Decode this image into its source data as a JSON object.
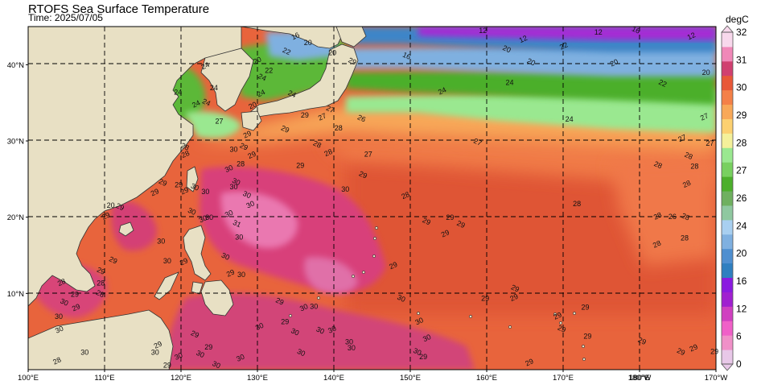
{
  "header": {
    "title": "RTOFS Sea Surface Temperature",
    "subtitle": "Time: 2025/07/05",
    "units": "degC"
  },
  "map": {
    "region": "Western North Pacific",
    "lon_range": [
      100,
      170
    ],
    "lat_range": [
      0,
      45
    ],
    "lon_ticks": [
      {
        "lon": 100,
        "label": "100°E"
      },
      {
        "lon": 110,
        "label": "110°E"
      },
      {
        "lon": 120,
        "label": "120°E"
      },
      {
        "lon": 130,
        "label": "130°E"
      },
      {
        "lon": 140,
        "label": "140°E"
      },
      {
        "lon": 150,
        "label": "150°E"
      },
      {
        "lon": 160,
        "label": "160°E"
      },
      {
        "lon": 170,
        "label": "170°E"
      },
      {
        "lon": 180,
        "label": "180°W"
      },
      {
        "lon": 180,
        "label": "180°E"
      },
      {
        "lon": 190,
        "label": "170°W"
      }
    ],
    "lat_ticks": [
      {
        "lat": 10,
        "label": "10°N"
      },
      {
        "lat": 20,
        "label": "20°N"
      },
      {
        "lat": 30,
        "label": "30°N"
      },
      {
        "lat": 40,
        "label": "40°N"
      }
    ],
    "grid_lines": "dashed",
    "land_color": "#e8e0c4"
  },
  "colorbar": {
    "levels": [
      0,
      2,
      4,
      6,
      8,
      10,
      12,
      14,
      16,
      18,
      20,
      21,
      22,
      23,
      24,
      25,
      26,
      27,
      28,
      29,
      30,
      31,
      32
    ],
    "colors": [
      "#e8c8e8",
      "#f090c8",
      "#f060c8",
      "#d040c0",
      "#a020d0",
      "#8a1ae0",
      "#2f7fc0",
      "#4f8fd0",
      "#7fb0e0",
      "#a8cff0",
      "#8fc8a0",
      "#6fb060",
      "#4caf2c",
      "#78d060",
      "#9ae890",
      "#f4f09a",
      "#fcd070",
      "#f8a858",
      "#f48048",
      "#e85838",
      "#d04070",
      "#f088b8",
      "#f8d8ec"
    ],
    "tick_labels": [
      "0",
      "6",
      "12",
      "16",
      "20",
      "24",
      "26",
      "27",
      "28",
      "29",
      "30",
      "31",
      "32"
    ]
  },
  "contour_labels": [
    {
      "t": "16",
      "lon": 135,
      "lat": 43.7
    },
    {
      "t": "20",
      "lon": 136.6,
      "lat": 42.8
    },
    {
      "t": "22",
      "lon": 133.8,
      "lat": 41.7
    },
    {
      "t": "20",
      "lon": 130,
      "lat": 40.5
    },
    {
      "t": "20",
      "lon": 139.8,
      "lat": 41.5
    },
    {
      "t": "29",
      "lon": 142.4,
      "lat": 40.4
    },
    {
      "t": "24",
      "lon": 123.2,
      "lat": 39.8
    },
    {
      "t": "24",
      "lon": 124.3,
      "lat": 36.9
    },
    {
      "t": "24",
      "lon": 123.3,
      "lat": 35
    },
    {
      "t": "24",
      "lon": 122,
      "lat": 34.8
    },
    {
      "t": "24",
      "lon": 119.6,
      "lat": 36.3
    },
    {
      "t": "24",
      "lon": 130.6,
      "lat": 38.3
    },
    {
      "t": "24",
      "lon": 130.5,
      "lat": 36.2
    },
    {
      "t": "22",
      "lon": 131.5,
      "lat": 39.2
    },
    {
      "t": "24",
      "lon": 134.5,
      "lat": 36.1
    },
    {
      "t": "20",
      "lon": 129.4,
      "lat": 34.6
    },
    {
      "t": "27",
      "lon": 125,
      "lat": 32.5
    },
    {
      "t": "29",
      "lon": 133.6,
      "lat": 31.5
    },
    {
      "t": "29",
      "lon": 128.7,
      "lat": 30.8
    },
    {
      "t": "29",
      "lon": 136.2,
      "lat": 33.3
    },
    {
      "t": "27",
      "lon": 139.5,
      "lat": 34.1
    },
    {
      "t": "27",
      "lon": 138.5,
      "lat": 33.1
    },
    {
      "t": "28",
      "lon": 140.6,
      "lat": 31.6
    },
    {
      "t": "26",
      "lon": 143.6,
      "lat": 32.9
    },
    {
      "t": "24",
      "lon": 154.2,
      "lat": 36.5
    },
    {
      "t": "24",
      "lon": 163,
      "lat": 37.6
    },
    {
      "t": "22",
      "lon": 183,
      "lat": 37.5
    },
    {
      "t": "27",
      "lon": 188.5,
      "lat": 33.1
    },
    {
      "t": "24",
      "lon": 170.8,
      "lat": 32.8
    },
    {
      "t": "27",
      "lon": 158.8,
      "lat": 29.8
    },
    {
      "t": "27",
      "lon": 185.6,
      "lat": 30.3
    },
    {
      "t": "27",
      "lon": 189.2,
      "lat": 29.6
    },
    {
      "t": "20",
      "lon": 165.8,
      "lat": 40.3
    },
    {
      "t": "20",
      "lon": 176.7,
      "lat": 40.2
    },
    {
      "t": "20",
      "lon": 188.7,
      "lat": 38.9
    },
    {
      "t": "16",
      "lon": 149.5,
      "lat": 41.1
    },
    {
      "t": "12",
      "lon": 164.8,
      "lat": 43.3
    },
    {
      "t": "12",
      "lon": 174.6,
      "lat": 44.2
    },
    {
      "t": "16",
      "lon": 179.5,
      "lat": 44.5
    },
    {
      "t": "12",
      "lon": 186.8,
      "lat": 43.7
    },
    {
      "t": "12",
      "lon": 159.5,
      "lat": 44.4
    },
    {
      "t": "20",
      "lon": 162.6,
      "lat": 42
    },
    {
      "t": "22",
      "lon": 170.1,
      "lat": 42.4
    },
    {
      "t": "27",
      "lon": 144.5,
      "lat": 28.2
    },
    {
      "t": "28",
      "lon": 137.8,
      "lat": 29.5
    },
    {
      "t": "28",
      "lon": 139.3,
      "lat": 28.4
    },
    {
      "t": "30",
      "lon": 126.9,
      "lat": 28.8
    },
    {
      "t": "29",
      "lon": 128.2,
      "lat": 29.2
    },
    {
      "t": "29",
      "lon": 129.3,
      "lat": 28.1
    },
    {
      "t": "29",
      "lon": 135.6,
      "lat": 26.7
    },
    {
      "t": "29",
      "lon": 143.8,
      "lat": 25.5
    },
    {
      "t": "28",
      "lon": 149.4,
      "lat": 22.8
    },
    {
      "t": "28",
      "lon": 171.8,
      "lat": 21.7
    },
    {
      "t": "28",
      "lon": 182.4,
      "lat": 26.8
    },
    {
      "t": "28",
      "lon": 186.2,
      "lat": 24.3
    },
    {
      "t": "28",
      "lon": 187.2,
      "lat": 26.6
    },
    {
      "t": "28",
      "lon": 186.4,
      "lat": 28
    },
    {
      "t": "28",
      "lon": 182.4,
      "lat": 20.1
    },
    {
      "t": "26",
      "lon": 184.3,
      "lat": 20
    },
    {
      "t": "28",
      "lon": 186,
      "lat": 20
    },
    {
      "t": "28",
      "lon": 182.3,
      "lat": 16.4
    },
    {
      "t": "28",
      "lon": 185.9,
      "lat": 17.2
    },
    {
      "t": "29",
      "lon": 152.1,
      "lat": 19.4
    },
    {
      "t": "29",
      "lon": 154.6,
      "lat": 17.8
    },
    {
      "t": "29",
      "lon": 155.2,
      "lat": 19.9
    },
    {
      "t": "29",
      "lon": 156.6,
      "lat": 19
    },
    {
      "t": "29",
      "lon": 147.8,
      "lat": 13.6
    },
    {
      "t": "30",
      "lon": 141.5,
      "lat": 23.6
    },
    {
      "t": "30",
      "lon": 128.6,
      "lat": 22.9
    },
    {
      "t": "30",
      "lon": 126.3,
      "lat": 26.3
    },
    {
      "t": "30",
      "lon": 126.9,
      "lat": 23.9
    },
    {
      "t": "30",
      "lon": 127.2,
      "lat": 24.6
    },
    {
      "t": "30",
      "lon": 129.1,
      "lat": 21.6
    },
    {
      "t": "30",
      "lon": 127.6,
      "lat": 17.3
    },
    {
      "t": "31",
      "lon": 127.3,
      "lat": 19.1
    },
    {
      "t": "30",
      "lon": 126.3,
      "lat": 20.4
    },
    {
      "t": "30",
      "lon": 123.7,
      "lat": 19.9
    },
    {
      "t": "30",
      "lon": 121.4,
      "lat": 20.7
    },
    {
      "t": "30",
      "lon": 122.9,
      "lat": 19.7
    },
    {
      "t": "30",
      "lon": 123.2,
      "lat": 23.3
    },
    {
      "t": "30",
      "lon": 121.8,
      "lat": 23.9
    },
    {
      "t": "29",
      "lon": 120.5,
      "lat": 23.4
    },
    {
      "t": "29",
      "lon": 119.7,
      "lat": 24.2
    },
    {
      "t": "28",
      "lon": 120.5,
      "lat": 29.2
    },
    {
      "t": "28",
      "lon": 120.6,
      "lat": 28.2
    },
    {
      "t": "28",
      "lon": 127.8,
      "lat": 26.9
    },
    {
      "t": "29",
      "lon": 117.6,
      "lat": 24.5
    },
    {
      "t": "29",
      "lon": 116.6,
      "lat": 23.2
    },
    {
      "t": "20",
      "lon": 110.8,
      "lat": 21.5
    },
    {
      "t": "29",
      "lon": 112,
      "lat": 21.3
    },
    {
      "t": "29",
      "lon": 110.2,
      "lat": 20.1
    },
    {
      "t": "30",
      "lon": 117.4,
      "lat": 16.8
    },
    {
      "t": "29",
      "lon": 111.1,
      "lat": 14.3
    },
    {
      "t": "28",
      "lon": 104.4,
      "lat": 11.4
    },
    {
      "t": "28",
      "lon": 109.5,
      "lat": 11.3
    },
    {
      "t": "29",
      "lon": 109.5,
      "lat": 12.9
    },
    {
      "t": "29",
      "lon": 120.4,
      "lat": 14.1
    },
    {
      "t": "30",
      "lon": 118.2,
      "lat": 14.2
    },
    {
      "t": "30",
      "lon": 125.8,
      "lat": 14.8
    },
    {
      "t": "29",
      "lon": 126.5,
      "lat": 12.6
    },
    {
      "t": "30",
      "lon": 127.9,
      "lat": 12.4
    },
    {
      "t": "29",
      "lon": 132.9,
      "lat": 8.9
    },
    {
      "t": "30",
      "lon": 136.1,
      "lat": 8.1
    },
    {
      "t": "30",
      "lon": 137.4,
      "lat": 8.2
    },
    {
      "t": "30",
      "lon": 148.8,
      "lat": 9.3
    },
    {
      "t": "30",
      "lon": 139.8,
      "lat": 5.2
    },
    {
      "t": "30",
      "lon": 142,
      "lat": 3.6
    },
    {
      "t": "30",
      "lon": 138.2,
      "lat": 5.1
    },
    {
      "t": "30",
      "lon": 151.2,
      "lat": 6.3
    },
    {
      "t": "29",
      "lon": 159.8,
      "lat": 9.3
    },
    {
      "t": "29",
      "lon": 169.8,
      "lat": 5.3
    },
    {
      "t": "29",
      "lon": 169.3,
      "lat": 7
    },
    {
      "t": "29",
      "lon": 172.9,
      "lat": 8.1
    },
    {
      "t": "29",
      "lon": 163.7,
      "lat": 10.6
    },
    {
      "t": "29",
      "lon": 163.6,
      "lat": 9.4
    },
    {
      "t": "29",
      "lon": 173.2,
      "lat": 4.3
    },
    {
      "t": "29",
      "lon": 180.3,
      "lat": 3.7
    },
    {
      "t": "29",
      "lon": 187.1,
      "lat": 2.8
    },
    {
      "t": "29",
      "lon": 189.8,
      "lat": 2.3
    },
    {
      "t": "29",
      "lon": 185.4,
      "lat": 2.3
    },
    {
      "t": "29",
      "lon": 165.6,
      "lat": 0.9
    },
    {
      "t": "29",
      "lon": 151.7,
      "lat": 1.6
    },
    {
      "t": "30",
      "lon": 150.9,
      "lat": 2.3
    },
    {
      "t": "30",
      "lon": 152.2,
      "lat": 4.1
    },
    {
      "t": "30",
      "lon": 142.3,
      "lat": 2.8
    },
    {
      "t": "30",
      "lon": 134.9,
      "lat": 4.9
    },
    {
      "t": "30",
      "lon": 130.3,
      "lat": 5.6
    },
    {
      "t": "29",
      "lon": 133.6,
      "lat": 6.2
    },
    {
      "t": "30",
      "lon": 135.7,
      "lat": 2.2
    },
    {
      "t": "30",
      "lon": 127.8,
      "lat": 1.5
    },
    {
      "t": "29",
      "lon": 123.6,
      "lat": 2.9
    },
    {
      "t": "29",
      "lon": 121.8,
      "lat": 4.6
    },
    {
      "t": "29",
      "lon": 117,
      "lat": 3.2
    },
    {
      "t": "30",
      "lon": 116.6,
      "lat": 2.2
    },
    {
      "t": "30",
      "lon": 122.5,
      "lat": 2
    },
    {
      "t": "30",
      "lon": 119.7,
      "lat": 1.7
    },
    {
      "t": "29",
      "lon": 118.2,
      "lat": 0.5
    },
    {
      "t": "30",
      "lon": 124.6,
      "lat": 0.6
    },
    {
      "t": "28",
      "lon": 103.8,
      "lat": 1.1
    },
    {
      "t": "30",
      "lon": 104,
      "lat": 6.9
    },
    {
      "t": "30",
      "lon": 104.7,
      "lat": 8.8
    },
    {
      "t": "29",
      "lon": 106.3,
      "lat": 8.1
    },
    {
      "t": "29",
      "lon": 106.1,
      "lat": 9.8
    },
    {
      "t": "28",
      "lon": 109.4,
      "lat": 9.9
    },
    {
      "t": "30",
      "lon": 104.1,
      "lat": 5.2
    },
    {
      "t": "30",
      "lon": 107.4,
      "lat": 2.2
    }
  ]
}
